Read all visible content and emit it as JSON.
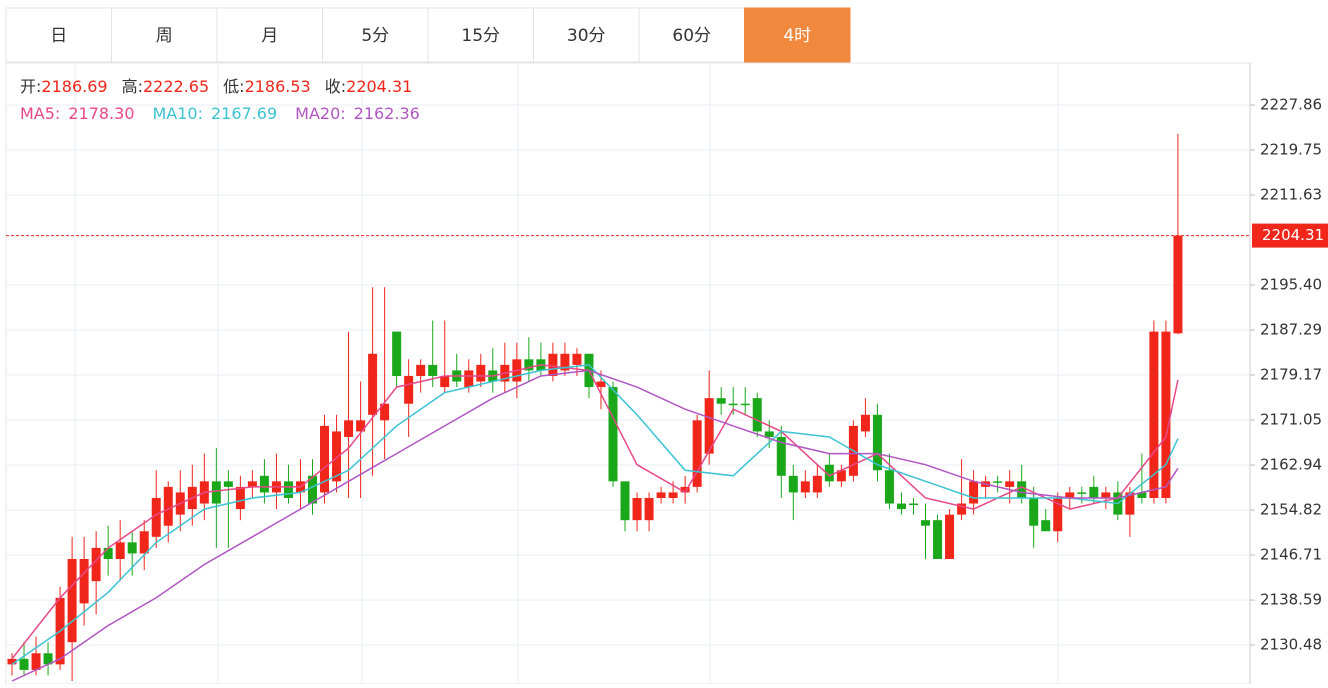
{
  "tabs": [
    "日",
    "周",
    "月",
    "5分",
    "15分",
    "30分",
    "60分",
    "4时"
  ],
  "active_tab": 7,
  "chart_data": {
    "type": "candlestick",
    "ohlc_labels": [
      "开:",
      "高:",
      "低:",
      "收:"
    ],
    "up_color": "#f0261a",
    "down_color": "#1aa81a",
    "ylim": [
      2123.46,
      2235.43
    ],
    "yticks": [
      {
        "value": 2227.86,
        "label": "2227.86"
      },
      {
        "value": 2219.75,
        "label": "2219.75"
      },
      {
        "value": 2211.63,
        "label": "2211.63"
      },
      {
        "value": 2195.4,
        "label": "2195.40"
      },
      {
        "value": 2187.29,
        "label": "2187.29"
      },
      {
        "value": 2179.17,
        "label": "2179.17"
      },
      {
        "value": 2171.05,
        "label": "2171.05"
      },
      {
        "value": 2162.94,
        "label": "2162.94"
      },
      {
        "value": 2154.82,
        "label": "2154.82"
      },
      {
        "value": 2146.71,
        "label": "2146.71"
      },
      {
        "value": 2138.59,
        "label": "2138.59"
      },
      {
        "value": 2130.48,
        "label": "2130.48"
      }
    ],
    "grid": true,
    "ohlc": [
      [
        2127,
        2129,
        2125,
        2128
      ],
      [
        2128,
        2131,
        2125,
        2126
      ],
      [
        2126,
        2132,
        2125,
        2129
      ],
      [
        2129,
        2131,
        2125,
        2127
      ],
      [
        2127,
        2141,
        2126,
        2139
      ],
      [
        2131,
        2150,
        2124,
        2146
      ],
      [
        2138,
        2150,
        2134,
        2146
      ],
      [
        2142,
        2151,
        2136,
        2148
      ],
      [
        2148,
        2152,
        2143,
        2146
      ],
      [
        2146,
        2153,
        2142,
        2149
      ],
      [
        2149,
        2151,
        2143,
        2147
      ],
      [
        2147,
        2153,
        2144,
        2151
      ],
      [
        2150,
        2162,
        2148,
        2157
      ],
      [
        2152,
        2160,
        2149,
        2159
      ],
      [
        2154,
        2162,
        2151,
        2158
      ],
      [
        2155,
        2163,
        2152,
        2159
      ],
      [
        2156,
        2165,
        2153,
        2160
      ],
      [
        2160,
        2166,
        2148,
        2156
      ],
      [
        2160,
        2162,
        2148,
        2159
      ],
      [
        2155,
        2161,
        2153,
        2159
      ],
      [
        2159,
        2162,
        2157,
        2160
      ],
      [
        2161,
        2164,
        2156,
        2158
      ],
      [
        2158,
        2165,
        2155,
        2160
      ],
      [
        2160,
        2163,
        2156,
        2157
      ],
      [
        2158,
        2164,
        2155,
        2160
      ],
      [
        2161,
        2164,
        2154,
        2156
      ],
      [
        2158,
        2172,
        2156,
        2170
      ],
      [
        2160,
        2172,
        2158,
        2169
      ],
      [
        2168,
        2187,
        2157,
        2171
      ],
      [
        2169,
        2178,
        2157,
        2171
      ],
      [
        2172,
        2195,
        2161,
        2183
      ],
      [
        2171,
        2195,
        2164,
        2174
      ],
      [
        2187,
        2187,
        2177,
        2179
      ],
      [
        2174,
        2182,
        2168,
        2179
      ],
      [
        2179,
        2182,
        2176,
        2181
      ],
      [
        2181,
        2189,
        2177,
        2179
      ],
      [
        2177,
        2189,
        2176,
        2179
      ],
      [
        2180,
        2183,
        2177,
        2178
      ],
      [
        2177,
        2182,
        2176,
        2180
      ],
      [
        2178,
        2183,
        2177,
        2181
      ],
      [
        2180,
        2184,
        2176,
        2178
      ],
      [
        2178,
        2185,
        2176,
        2181
      ],
      [
        2178,
        2185,
        2175,
        2182
      ],
      [
        2182,
        2186,
        2178,
        2180
      ],
      [
        2182,
        2185,
        2179,
        2180
      ],
      [
        2179,
        2185,
        2178,
        2183
      ],
      [
        2180,
        2185,
        2179,
        2183
      ],
      [
        2181,
        2184,
        2179,
        2183
      ],
      [
        2183,
        2183,
        2175,
        2177
      ],
      [
        2177,
        2180,
        2173,
        2178
      ],
      [
        2177,
        2178,
        2159,
        2160
      ],
      [
        2160,
        2160,
        2151,
        2153
      ],
      [
        2153,
        2158,
        2151,
        2157
      ],
      [
        2153,
        2158,
        2151,
        2157
      ],
      [
        2157,
        2159,
        2156,
        2158
      ],
      [
        2157,
        2160,
        2156,
        2158
      ],
      [
        2158,
        2161,
        2156,
        2159
      ],
      [
        2159,
        2172,
        2158,
        2171
      ],
      [
        2165,
        2180,
        2163,
        2175
      ],
      [
        2175,
        2177,
        2172,
        2174
      ],
      [
        2174,
        2177,
        2172,
        2174
      ],
      [
        2174,
        2177,
        2172,
        2174
      ],
      [
        2175,
        2176,
        2168,
        2169
      ],
      [
        2169,
        2171,
        2166,
        2168
      ],
      [
        2168,
        2170,
        2157,
        2161
      ],
      [
        2161,
        2163,
        2153,
        2158
      ],
      [
        2158,
        2162,
        2157,
        2160
      ],
      [
        2158,
        2163,
        2157,
        2161
      ],
      [
        2163,
        2165,
        2159,
        2160
      ],
      [
        2160,
        2163,
        2159,
        2162
      ],
      [
        2161,
        2171,
        2160,
        2170
      ],
      [
        2169,
        2175,
        2168,
        2172
      ],
      [
        2172,
        2174,
        2160,
        2162
      ],
      [
        2162,
        2165,
        2155,
        2156
      ],
      [
        2156,
        2158,
        2154,
        2155
      ],
      [
        2156,
        2157,
        2154,
        2156
      ],
      [
        2153,
        2156,
        2146,
        2152
      ],
      [
        2153,
        2154,
        2146,
        2146
      ],
      [
        2146,
        2155,
        2146,
        2154
      ],
      [
        2154,
        2164,
        2153,
        2156
      ],
      [
        2156,
        2162,
        2154,
        2160
      ],
      [
        2159,
        2161,
        2157,
        2160
      ],
      [
        2160,
        2161,
        2158,
        2160
      ],
      [
        2159,
        2162,
        2156,
        2160
      ],
      [
        2160,
        2163,
        2156,
        2157
      ],
      [
        2157,
        2159,
        2148,
        2152
      ],
      [
        2153,
        2155,
        2151,
        2151
      ],
      [
        2151,
        2158,
        2149,
        2157
      ],
      [
        2157,
        2159,
        2155,
        2158
      ],
      [
        2158,
        2159,
        2156,
        2158
      ],
      [
        2159,
        2161,
        2156,
        2157
      ],
      [
        2157,
        2159,
        2155,
        2158
      ],
      [
        2158,
        2160,
        2153,
        2154
      ],
      [
        2154,
        2159,
        2150,
        2158
      ],
      [
        2158,
        2165,
        2156,
        2157
      ],
      [
        2157,
        2189,
        2156,
        2187
      ],
      [
        2157,
        2189,
        2156,
        2187
      ],
      [
        2186.69,
        2222.65,
        2186.53,
        2204.31
      ]
    ],
    "series": [
      {
        "name": "MA5:",
        "color": "#e8488a",
        "value_label": "2178.30",
        "x": [
          0,
          4,
          8,
          12,
          16,
          20,
          24,
          28,
          32,
          36,
          40,
          44,
          48,
          52,
          56,
          60,
          64,
          68,
          72,
          76,
          80,
          84,
          88,
          92,
          96,
          97
        ],
        "values": [
          2128,
          2139,
          2148,
          2154,
          2158,
          2159,
          2159,
          2166,
          2177,
          2179,
          2179,
          2181,
          2180,
          2163,
          2158,
          2173,
          2169,
          2161,
          2165,
          2157,
          2155,
          2159,
          2155,
          2157,
          2168,
          2178.3
        ]
      },
      {
        "name": "MA10:",
        "color": "#3cc3d3",
        "value_label": "2167.69",
        "x": [
          0,
          4,
          8,
          12,
          16,
          20,
          24,
          28,
          32,
          36,
          40,
          44,
          48,
          52,
          56,
          60,
          64,
          68,
          72,
          76,
          80,
          84,
          88,
          92,
          96,
          97
        ],
        "values": [
          2127,
          2133,
          2140,
          2149,
          2155,
          2157,
          2158,
          2162,
          2170,
          2176,
          2178,
          2180,
          2181,
          2172,
          2162,
          2161,
          2169,
          2168,
          2163,
          2160,
          2157,
          2157,
          2157,
          2156,
          2163,
          2167.69
        ]
      },
      {
        "name": "MA20:",
        "color": "#b056c2",
        "value_label": "2162.36",
        "x": [
          0,
          4,
          8,
          12,
          16,
          20,
          24,
          28,
          32,
          36,
          40,
          44,
          48,
          52,
          56,
          60,
          64,
          68,
          72,
          76,
          80,
          84,
          88,
          92,
          96,
          97
        ],
        "values": [
          2124,
          2128,
          2134,
          2139,
          2145,
          2150,
          2155,
          2160,
          2165,
          2170,
          2175,
          2179,
          2180,
          2177,
          2173,
          2170,
          2167,
          2165,
          2165,
          2163,
          2160,
          2158,
          2157,
          2157,
          2159,
          2162.36
        ]
      }
    ]
  }
}
